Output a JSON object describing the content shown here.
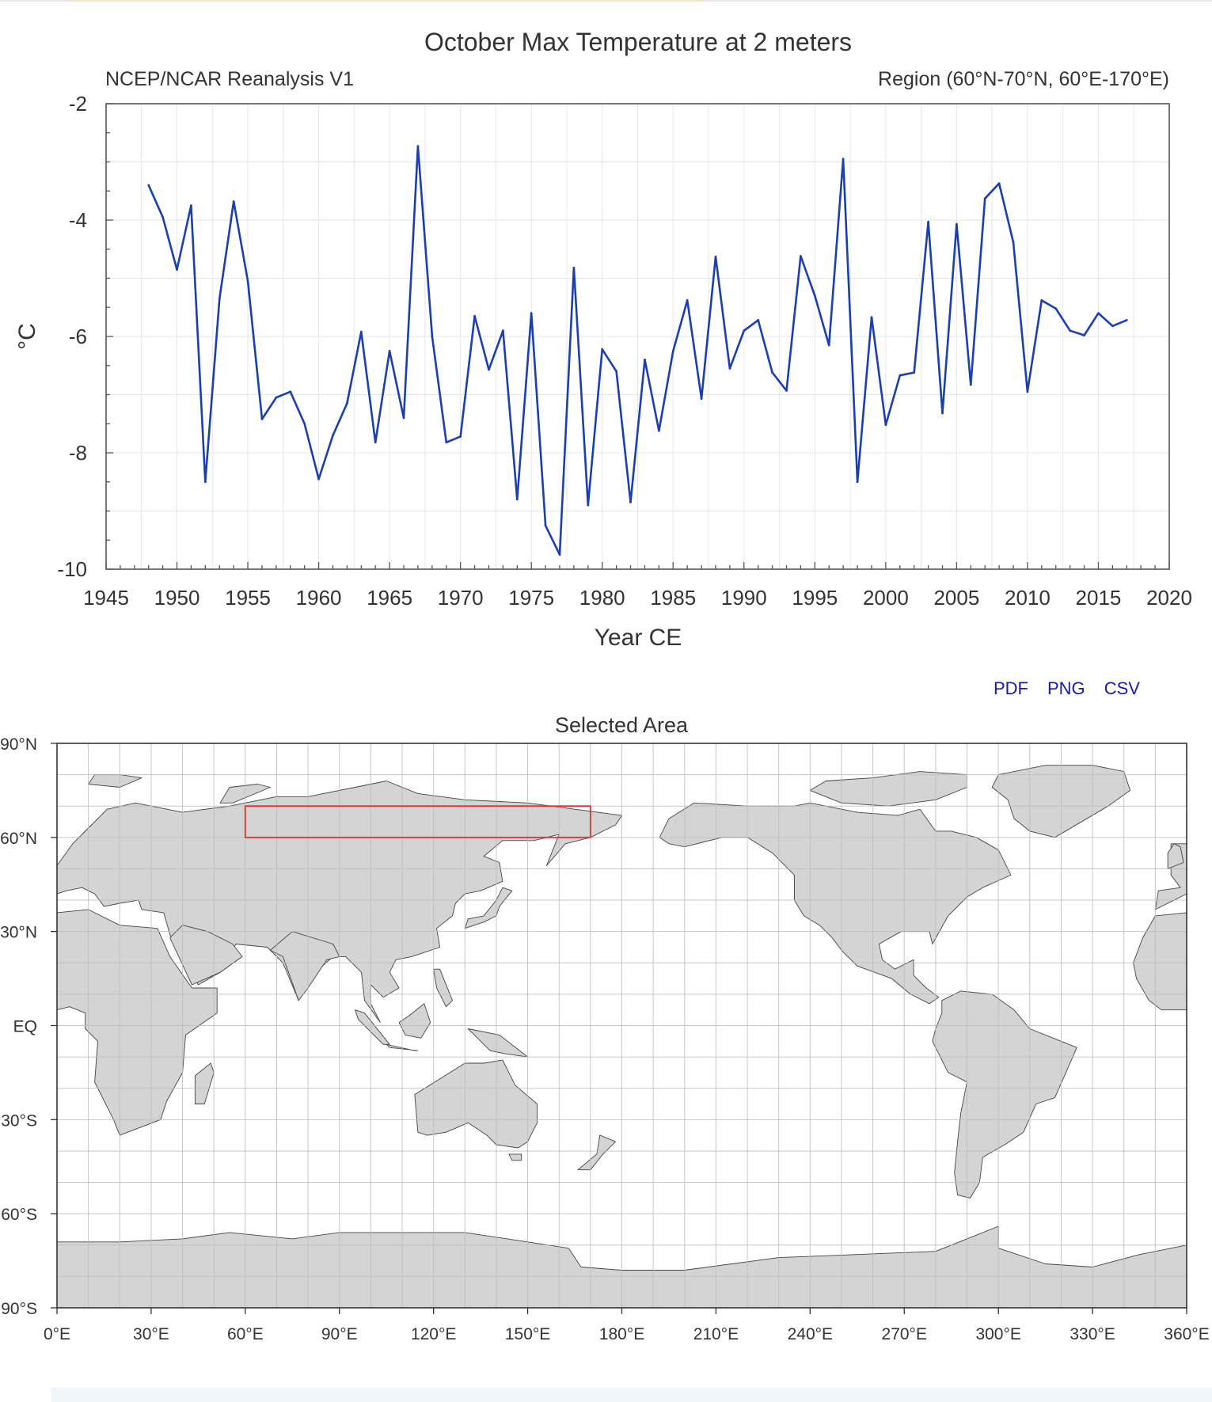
{
  "chart_data": [
    {
      "type": "line",
      "title": "October Max Temperature at 2 meters",
      "subtitle_left": "NCEP/NCAR Reanalysis V1",
      "subtitle_right": "Region (60°N-70°N, 60°E-170°E)",
      "xlabel": "Year CE",
      "ylabel": "°C",
      "xlim": [
        1945,
        2020
      ],
      "ylim": [
        -10,
        -2
      ],
      "xticks": [
        1945,
        1950,
        1955,
        1960,
        1965,
        1970,
        1975,
        1980,
        1985,
        1990,
        1995,
        2000,
        2005,
        2010,
        2015,
        2020
      ],
      "yticks": [
        -2,
        -4,
        -6,
        -8,
        -10
      ],
      "grid": true,
      "line_color": "#1b3fb0",
      "series": [
        {
          "name": "October Max Temperature",
          "x": [
            1948,
            1949,
            1950,
            1951,
            1952,
            1953,
            1954,
            1955,
            1956,
            1957,
            1958,
            1959,
            1960,
            1961,
            1962,
            1963,
            1964,
            1965,
            1966,
            1967,
            1968,
            1969,
            1970,
            1971,
            1972,
            1973,
            1974,
            1975,
            1976,
            1977,
            1978,
            1979,
            1980,
            1981,
            1982,
            1983,
            1984,
            1985,
            1986,
            1987,
            1988,
            1989,
            1990,
            1991,
            1992,
            1993,
            1994,
            1995,
            1996,
            1997,
            1998,
            1999,
            2000,
            2001,
            2002,
            2003,
            2004,
            2005,
            2006,
            2007,
            2008,
            2009,
            2010,
            2011,
            2012,
            2013,
            2014,
            2015,
            2016,
            2017
          ],
          "values": [
            -3.4,
            -3.95,
            -4.85,
            -3.75,
            -8.5,
            -5.35,
            -3.68,
            -5.05,
            -7.42,
            -7.05,
            -6.95,
            -7.5,
            -8.45,
            -7.7,
            -7.15,
            -5.92,
            -7.82,
            -6.25,
            -7.4,
            -2.73,
            -6.0,
            -7.82,
            -7.72,
            -5.65,
            -6.57,
            -5.9,
            -8.8,
            -5.6,
            -9.25,
            -9.75,
            -4.82,
            -8.9,
            -6.22,
            -6.6,
            -8.85,
            -6.4,
            -7.62,
            -6.25,
            -5.38,
            -7.07,
            -4.63,
            -6.55,
            -5.9,
            -5.72,
            -6.62,
            -6.93,
            -4.62,
            -5.3,
            -6.15,
            -2.95,
            -8.5,
            -5.67,
            -7.52,
            -6.67,
            -6.62,
            -4.03,
            -7.32,
            -4.07,
            -6.83,
            -3.63,
            -3.37,
            -4.38,
            -6.95,
            -5.38,
            -5.52,
            -5.9,
            -5.98,
            -5.6,
            -5.82,
            -5.72
          ]
        }
      ]
    },
    {
      "type": "map",
      "title": "Selected Area",
      "xlim": [
        0,
        360
      ],
      "ylim": [
        -90,
        90
      ],
      "xticks": [
        0,
        30,
        60,
        90,
        120,
        150,
        180,
        210,
        240,
        270,
        300,
        330,
        360
      ],
      "xtick_labels": [
        "0°E",
        "30°E",
        "60°E",
        "90°E",
        "120°E",
        "150°E",
        "180°E",
        "210°E",
        "240°E",
        "270°E",
        "300°E",
        "330°E",
        "360°E"
      ],
      "yticks": [
        90,
        60,
        30,
        0,
        -30,
        -60,
        -90
      ],
      "ytick_labels": [
        "90°N",
        "60°N",
        "30°N",
        "EQ",
        "30°S",
        "60°S",
        "90°S"
      ],
      "grid_step": 10,
      "land_color": "#d4d4d4",
      "selected_region": {
        "lon": [
          60,
          170
        ],
        "lat": [
          60,
          70
        ],
        "color": "#e03030"
      }
    }
  ],
  "downloads": {
    "pdf": "PDF",
    "png": "PNG",
    "csv": "CSV"
  }
}
